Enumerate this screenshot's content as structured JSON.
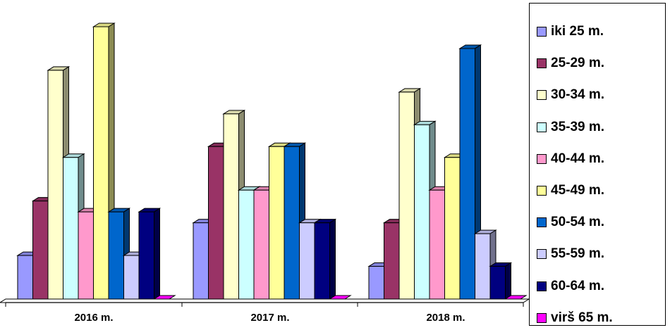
{
  "chart_data": {
    "type": "bar",
    "categories": [
      "2016 m.",
      "2017 m.",
      "2018 m."
    ],
    "series": [
      {
        "name": "iki 25 m.",
        "color": "#9999FF",
        "values": [
          4,
          7,
          3
        ]
      },
      {
        "name": "25-29 m.",
        "color": "#993366",
        "values": [
          9,
          14,
          7
        ]
      },
      {
        "name": "30-34 m.",
        "color": "#FFFFCC",
        "values": [
          21,
          17,
          19
        ]
      },
      {
        "name": "35-39 m.",
        "color": "#CCFFFF",
        "values": [
          13,
          10,
          16
        ]
      },
      {
        "name": "40-44 m.",
        "color": "#FF99CC",
        "values": [
          8,
          10,
          10
        ]
      },
      {
        "name": "45-49 m.",
        "color": "#FFFF99",
        "values": [
          25,
          14,
          13
        ]
      },
      {
        "name": "50-54 m.",
        "color": "#0066CC",
        "values": [
          8,
          14,
          23
        ]
      },
      {
        "name": "55-59 m.",
        "color": "#CCCCFF",
        "values": [
          4,
          7,
          6
        ]
      },
      {
        "name": "60-64 m.",
        "color": "#000080",
        "values": [
          8,
          7,
          3
        ]
      },
      {
        "name": "virš 65 m.",
        "color": "#FF00FF",
        "values": [
          0,
          0,
          0
        ]
      }
    ],
    "ylim": [
      0,
      25
    ],
    "grid": false,
    "legend": "right",
    "style": "3d-clustered-column"
  }
}
